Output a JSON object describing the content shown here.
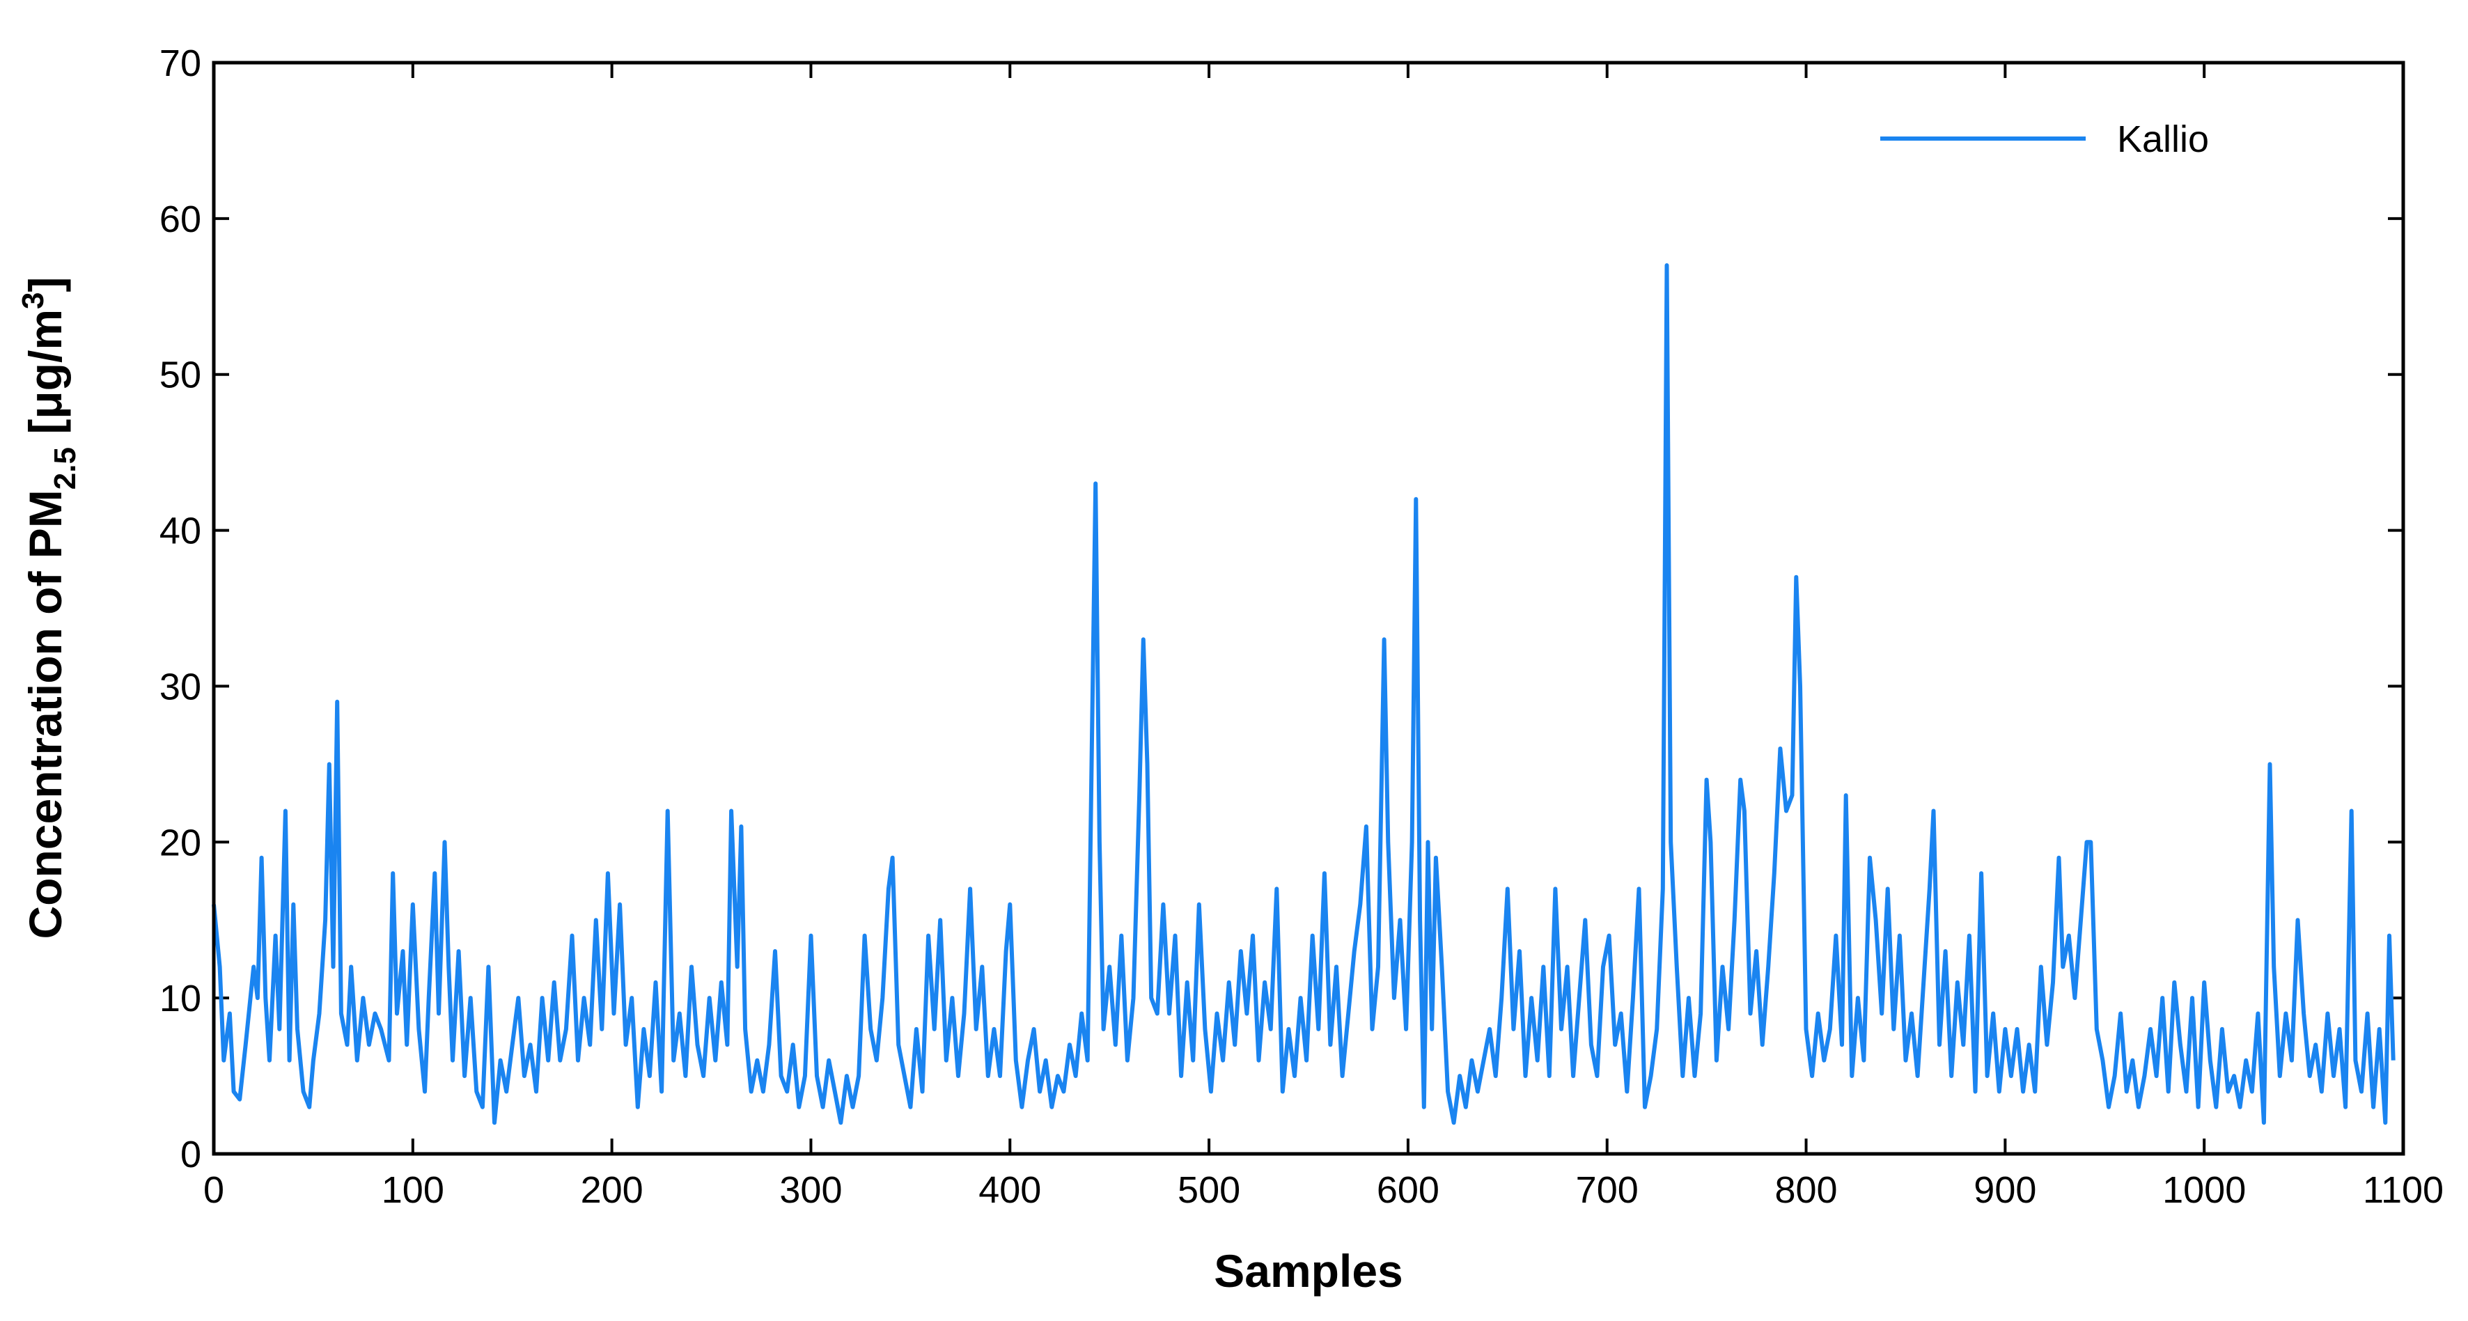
{
  "chart_data": {
    "type": "line",
    "xlabel": "Samples",
    "ylabel_parts": [
      "Concentration of PM",
      "2.5",
      " [μg/m",
      "3",
      "]"
    ],
    "xlim": [
      0,
      1100
    ],
    "ylim": [
      0,
      70
    ],
    "xticks": [
      0,
      100,
      200,
      300,
      400,
      500,
      600,
      700,
      800,
      900,
      1000,
      1100
    ],
    "yticks": [
      0,
      10,
      20,
      30,
      40,
      50,
      60,
      70
    ],
    "legend": "upper right",
    "x": [
      0,
      3,
      5,
      8,
      10,
      13,
      16,
      20,
      22,
      24,
      26,
      28,
      31,
      33,
      36,
      38,
      40,
      42,
      45,
      48,
      50,
      53,
      56,
      58,
      60,
      62,
      64,
      67,
      69,
      72,
      75,
      78,
      81,
      84,
      88,
      90,
      92,
      95,
      97,
      100,
      103,
      106,
      108,
      111,
      113,
      116,
      118,
      120,
      123,
      126,
      129,
      132,
      135,
      138,
      141,
      144,
      147,
      150,
      153,
      156,
      159,
      162,
      165,
      168,
      171,
      174,
      177,
      180,
      183,
      186,
      189,
      192,
      195,
      198,
      201,
      204,
      207,
      210,
      213,
      216,
      219,
      222,
      225,
      228,
      231,
      234,
      237,
      240,
      243,
      246,
      249,
      252,
      255,
      258,
      260,
      263,
      265,
      267,
      270,
      273,
      276,
      279,
      282,
      285,
      288,
      291,
      294,
      297,
      300,
      303,
      306,
      309,
      312,
      315,
      318,
      321,
      324,
      327,
      330,
      333,
      336,
      339,
      341,
      344,
      347,
      350,
      353,
      356,
      359,
      362,
      365,
      368,
      371,
      374,
      377,
      380,
      383,
      386,
      389,
      392,
      395,
      398,
      400,
      403,
      406,
      409,
      412,
      415,
      418,
      421,
      424,
      427,
      430,
      433,
      436,
      439,
      441,
      443,
      445,
      447,
      450,
      453,
      456,
      459,
      462,
      465,
      467,
      469,
      471,
      474,
      477,
      480,
      483,
      486,
      489,
      492,
      495,
      498,
      501,
      504,
      507,
      510,
      513,
      516,
      519,
      522,
      525,
      528,
      531,
      534,
      537,
      540,
      543,
      546,
      549,
      552,
      555,
      558,
      561,
      564,
      567,
      570,
      573,
      576,
      579,
      582,
      585,
      588,
      590,
      593,
      596,
      599,
      602,
      604,
      606,
      608,
      610,
      612,
      614,
      617,
      620,
      623,
      626,
      629,
      632,
      635,
      638,
      641,
      644,
      647,
      650,
      653,
      656,
      659,
      662,
      665,
      668,
      671,
      674,
      677,
      680,
      683,
      686,
      689,
      692,
      695,
      698,
      701,
      704,
      707,
      710,
      713,
      716,
      719,
      722,
      725,
      728,
      730,
      732,
      735,
      738,
      741,
      744,
      747,
      750,
      752,
      755,
      758,
      761,
      764,
      767,
      769,
      772,
      775,
      778,
      781,
      784,
      787,
      790,
      793,
      795,
      797,
      800,
      803,
      806,
      809,
      812,
      815,
      818,
      820,
      823,
      826,
      829,
      832,
      835,
      838,
      841,
      844,
      847,
      850,
      853,
      856,
      859,
      862,
      864,
      867,
      870,
      873,
      876,
      879,
      882,
      885,
      888,
      891,
      894,
      897,
      900,
      903,
      906,
      909,
      912,
      915,
      918,
      921,
      924,
      927,
      929,
      932,
      935,
      938,
      941,
      943,
      946,
      949,
      952,
      955,
      958,
      961,
      964,
      967,
      970,
      973,
      976,
      979,
      982,
      985,
      988,
      991,
      994,
      997,
      1000,
      1003,
      1006,
      1009,
      1012,
      1015,
      1018,
      1021,
      1024,
      1027,
      1030,
      1033,
      1035,
      1038,
      1041,
      1044,
      1047,
      1050,
      1053,
      1056,
      1059,
      1062,
      1065,
      1068,
      1071,
      1074,
      1076,
      1079,
      1082,
      1085,
      1088,
      1091,
      1093,
      1095
    ],
    "series": [
      {
        "name": "Kallio",
        "color": "#1a84f0",
        "values": [
          16,
          12,
          6,
          9,
          4,
          3.5,
          7,
          12,
          10,
          19,
          10,
          6,
          14,
          8,
          22,
          6,
          16,
          8,
          4,
          3,
          6,
          9,
          15,
          25,
          12,
          29,
          9,
          7,
          12,
          6,
          10,
          7,
          9,
          8,
          6,
          18,
          9,
          13,
          7,
          16,
          8,
          4,
          10,
          18,
          9,
          20,
          12,
          6,
          13,
          5,
          10,
          4,
          3,
          12,
          2,
          6,
          4,
          7,
          10,
          5,
          7,
          4,
          10,
          6,
          11,
          6,
          8,
          14,
          6,
          10,
          7,
          15,
          8,
          18,
          9,
          16,
          7,
          10,
          3,
          8,
          5,
          11,
          4,
          22,
          6,
          9,
          5,
          12,
          7,
          5,
          10,
          6,
          11,
          7,
          22,
          12,
          21,
          8,
          4,
          6,
          4,
          7,
          13,
          5,
          4,
          7,
          3,
          5,
          14,
          5,
          3,
          6,
          4,
          2,
          5,
          3,
          5,
          14,
          8,
          6,
          10,
          17,
          19,
          7,
          5,
          3,
          8,
          4,
          14,
          8,
          15,
          6,
          10,
          5,
          9,
          17,
          8,
          12,
          5,
          8,
          5,
          13,
          16,
          6,
          3,
          6,
          8,
          4,
          6,
          3,
          5,
          4,
          7,
          5,
          9,
          6,
          25,
          43,
          20,
          8,
          12,
          7,
          14,
          6,
          10,
          23,
          33,
          25,
          10,
          9,
          16,
          9,
          14,
          5,
          11,
          6,
          16,
          8,
          4,
          9,
          6,
          11,
          7,
          13,
          9,
          14,
          6,
          11,
          8,
          17,
          4,
          8,
          5,
          10,
          6,
          14,
          8,
          18,
          7,
          12,
          5,
          9,
          13,
          16,
          21,
          8,
          12,
          33,
          20,
          10,
          15,
          8,
          20,
          42,
          15,
          3,
          20,
          8,
          19,
          12,
          4,
          2,
          5,
          3,
          6,
          4,
          6,
          8,
          5,
          10,
          17,
          8,
          13,
          5,
          10,
          6,
          12,
          5,
          17,
          8,
          12,
          5,
          10,
          15,
          7,
          5,
          12,
          14,
          7,
          9,
          4,
          10,
          17,
          3,
          5,
          8,
          17,
          57,
          20,
          12,
          5,
          10,
          5,
          9,
          24,
          20,
          6,
          12,
          8,
          15,
          24,
          22,
          9,
          13,
          7,
          12,
          18,
          26,
          22,
          23,
          37,
          30,
          8,
          5,
          9,
          6,
          8,
          14,
          7,
          23,
          5,
          10,
          6,
          19,
          15,
          9,
          17,
          8,
          14,
          6,
          9,
          5,
          11,
          17,
          22,
          7,
          13,
          5,
          11,
          7,
          14,
          4,
          18,
          5,
          9,
          4,
          8,
          5,
          8,
          4,
          7,
          4,
          12,
          7,
          11,
          19,
          12,
          14,
          10,
          15,
          20,
          20,
          8,
          6,
          3,
          5,
          9,
          4,
          6,
          3,
          5,
          8,
          5,
          10,
          4,
          11,
          7,
          4,
          10,
          3,
          11,
          6,
          3,
          8,
          4,
          5,
          3,
          6,
          4,
          9,
          2,
          25,
          12,
          5,
          9,
          6,
          15,
          9,
          5,
          7,
          4,
          9,
          5,
          8,
          3,
          22,
          6,
          4,
          9,
          3,
          8,
          2,
          14,
          6
        ]
      }
    ]
  }
}
